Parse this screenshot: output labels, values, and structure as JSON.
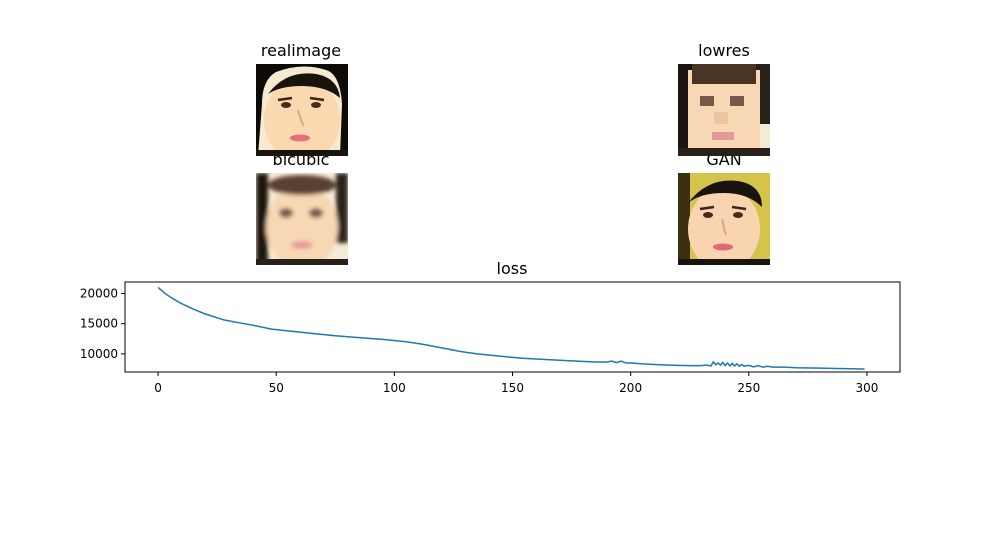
{
  "panels": {
    "real": {
      "title": "realimage"
    },
    "lowres": {
      "title": "lowres"
    },
    "bicubic": {
      "title": "bicubic"
    },
    "gan": {
      "title": "GAN"
    }
  },
  "chart_data": {
    "type": "line",
    "title": "loss",
    "xlabel": "",
    "ylabel": "",
    "xlim": [
      -14,
      314
    ],
    "ylim": [
      7000,
      21900
    ],
    "xticks": [
      0,
      50,
      100,
      150,
      200,
      250,
      300
    ],
    "yticks": [
      10000,
      15000,
      20000
    ],
    "grid": false,
    "color": "#1f77b4",
    "series": [
      {
        "x": [
          0,
          3,
          6,
          10,
          15,
          20,
          28,
          35,
          42,
          48,
          55,
          65,
          75,
          85,
          95,
          105,
          112,
          120,
          128,
          135,
          145,
          155,
          165,
          175,
          185,
          190,
          192,
          194,
          196,
          198,
          200,
          205,
          210,
          215,
          220,
          225,
          230,
          232,
          234,
          235,
          236,
          237,
          238,
          239,
          240,
          241,
          242,
          243,
          244,
          245,
          246,
          247,
          248,
          250,
          252,
          254,
          256,
          258,
          260,
          265,
          270,
          280,
          290,
          299
        ],
        "y": [
          21000,
          20000,
          19200,
          18300,
          17400,
          16600,
          15600,
          15100,
          14600,
          14100,
          13800,
          13400,
          13000,
          12700,
          12400,
          12000,
          11600,
          11000,
          10400,
          10000,
          9600,
          9250,
          9050,
          8850,
          8650,
          8650,
          8800,
          8550,
          8800,
          8500,
          8500,
          8350,
          8250,
          8150,
          8100,
          8050,
          8050,
          8150,
          8000,
          8700,
          8200,
          8500,
          8100,
          8600,
          8050,
          8500,
          8000,
          8450,
          8000,
          8350,
          7950,
          8250,
          7950,
          8100,
          7850,
          8050,
          7800,
          7950,
          7800,
          7800,
          7700,
          7650,
          7550,
          7500
        ]
      }
    ]
  }
}
